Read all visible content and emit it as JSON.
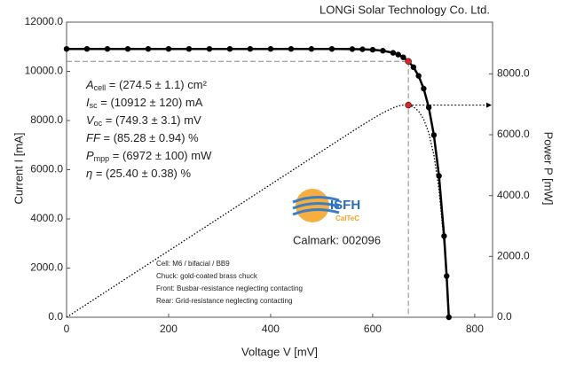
{
  "chart_data": {
    "type": "line",
    "title": "LONGi Solar Technology Co. Ltd.",
    "x_label": "Voltage V [mV]",
    "y_label": "Current I [mA]",
    "y2_label": "Power P [mW]",
    "x": [
      0,
      40,
      80,
      120,
      160,
      200,
      240,
      280,
      320,
      360,
      400,
      440,
      480,
      520,
      560,
      580,
      600,
      620,
      640,
      650,
      660,
      670,
      680,
      690,
      700,
      710,
      720,
      730,
      740,
      745,
      749.3
    ],
    "series": [
      {
        "color": "#000000",
        "marker": "dot",
        "values": [
          10912,
          10912,
          10912,
          10912,
          10912,
          10912,
          10912,
          10912,
          10912,
          10912,
          10912,
          10912,
          10911,
          10910,
          10905,
          10897,
          10879,
          10839,
          10754,
          10680,
          10570,
          10406,
          10168,
          9816,
          9298,
          8532,
          7408,
          5747,
          3301,
          1676,
          0
        ]
      },
      {
        "color": "#000000",
        "style": "dotted",
        "axis": "y2",
        "values": [
          0,
          436.5,
          873.0,
          1309.4,
          1745.9,
          2182.4,
          2618.9,
          3055.4,
          3491.8,
          3928.3,
          4364.8,
          4801.3,
          5237.3,
          5673.2,
          6106.8,
          6320.3,
          6527.4,
          6720.2,
          6882.6,
          6942.0,
          6976.2,
          6972.0,
          6914.2,
          6773.0,
          6508.6,
          6057.7,
          5333.8,
          4195.3,
          2442.7,
          1248.6,
          0
        ]
      }
    ],
    "xlim": [
      0,
      835
    ],
    "ylim": [
      0,
      12000
    ],
    "y2lim": [
      0,
      9700
    ],
    "xticks": [
      0,
      200,
      400,
      600,
      800
    ],
    "yticks": [
      {
        "value": 0,
        "label": "0.0"
      },
      {
        "value": 2000,
        "label": "2000.0"
      },
      {
        "value": 4000,
        "label": "4000.0"
      },
      {
        "value": 6000,
        "label": "6000.0"
      },
      {
        "value": 8000,
        "label": "8000.0"
      },
      {
        "value": 10000,
        "label": "10000.0"
      },
      {
        "value": 12000,
        "label": "12000.0"
      }
    ],
    "y2ticks": [
      {
        "value": 0,
        "label": "0.0"
      },
      {
        "value": 2000,
        "label": "2000.0"
      },
      {
        "value": 4000,
        "label": "4000.0"
      },
      {
        "value": 6000,
        "label": "6000.0"
      },
      {
        "value": 8000,
        "label": "8000.0"
      }
    ],
    "mpp": {
      "x": 670,
      "current": 10406,
      "power": 6972,
      "color": "#d62728"
    },
    "annotations": [
      {
        "symbol": "A",
        "sub": "cell",
        "rest": " = (274.5 ± 1.1) cm²"
      },
      {
        "symbol": "I",
        "sub": "sc",
        "rest": " = (10912 ± 120) mA"
      },
      {
        "symbol": "V",
        "sub": "oc",
        "rest": " = (749.3 ± 3.1) mV"
      },
      {
        "symbol": "FF",
        "rest": " = (85.28 ± 0.94) %"
      },
      {
        "symbol": "P",
        "sub": "mpp",
        "rest": " = (6972 ± 100) mW"
      },
      {
        "symbol": "η",
        "rest": " = (25.40 ± 0.38) %"
      }
    ],
    "logo": {
      "name": "ISFH",
      "sub": "CalTeC"
    },
    "calmark": "Calmark: 002096",
    "notes": [
      "Cell: M6 / bifacial / BB9",
      "Chuck: gold-coated brass chuck",
      "Front: Busbar-resistance neglecting contacting",
      "Rear: Grid-resistance neglecting contacting"
    ]
  }
}
